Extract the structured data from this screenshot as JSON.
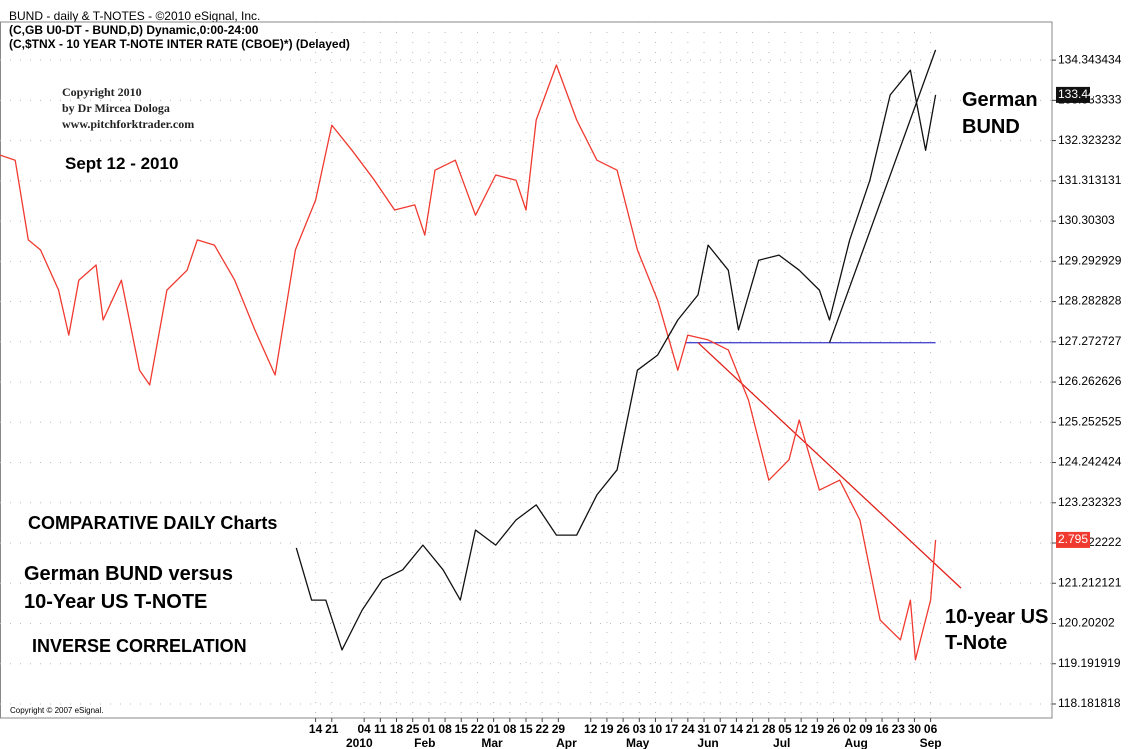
{
  "chart_data": {
    "type": "line",
    "title": "BUND - daily & T-NOTES - ©2010 eSignal, Inc.",
    "subtitle_lines": [
      "(C,GB U0-DT - BUND,D) Dynamic,0:00-24:00",
      "(C,$TNX - 10 YEAR T-NOTE INTER RATE (CBOE)*)  (Delayed)"
    ],
    "footer": "Copyright © 2007 eSignal.",
    "annotations": [
      {
        "text": "Copyright 2010",
        "color": "#222222"
      },
      {
        "text": "by Dr Mircea Dologa",
        "color": "#222222"
      },
      {
        "text": "www.pitchforktrader.com",
        "color": "#222222"
      },
      {
        "text": "Sept 12 - 2010",
        "color": "#2e8b2e"
      },
      {
        "text": "COMPARATIVE DAILY Charts",
        "color": "#8b1a9b"
      },
      {
        "text": "German BUND versus",
        "color": "#8b1a1a"
      },
      {
        "text": "10-Year US T-NOTE",
        "color": "#8b1a1a"
      },
      {
        "text": "INVERSE CORRELATION",
        "color": "#111111"
      },
      {
        "text": "German",
        "color": "#111111"
      },
      {
        "text": "BUND",
        "color": "#111111"
      },
      {
        "text": "10-year US",
        "color": "#e0201a"
      },
      {
        "text": "T-Note",
        "color": "#e0201a"
      }
    ],
    "grid": true,
    "xlim": [
      -19.5,
      45.5
    ],
    "ylim": [
      117.83,
      135.3
    ],
    "yticks": [
      134.343434,
      133.333333,
      132.323232,
      131.313131,
      130.30303,
      129.292929,
      128.282828,
      127.272727,
      126.262626,
      125.252525,
      124.242424,
      123.232323,
      122.222222,
      121.212121,
      120.20202,
      119.191919,
      118.181818
    ],
    "xticks": [
      {
        "value": 0,
        "label": "14"
      },
      {
        "value": 1,
        "label": "21"
      },
      {
        "value": 3,
        "label": "04"
      },
      {
        "value": 4,
        "label": "11"
      },
      {
        "value": 5,
        "label": "18"
      },
      {
        "value": 6,
        "label": "25"
      },
      {
        "value": 7,
        "label": "01"
      },
      {
        "value": 8,
        "label": "08"
      },
      {
        "value": 9,
        "label": "15"
      },
      {
        "value": 10,
        "label": "22"
      },
      {
        "value": 11,
        "label": "01"
      },
      {
        "value": 12,
        "label": "08"
      },
      {
        "value": 13,
        "label": "15"
      },
      {
        "value": 14,
        "label": "22"
      },
      {
        "value": 15,
        "label": "29"
      },
      {
        "value": 17,
        "label": "12"
      },
      {
        "value": 18,
        "label": "19"
      },
      {
        "value": 19,
        "label": "26"
      },
      {
        "value": 20,
        "label": "03"
      },
      {
        "value": 21,
        "label": "10"
      },
      {
        "value": 22,
        "label": "17"
      },
      {
        "value": 23,
        "label": "24"
      },
      {
        "value": 24,
        "label": "31"
      },
      {
        "value": 25,
        "label": "07"
      },
      {
        "value": 26,
        "label": "14"
      },
      {
        "value": 27,
        "label": "21"
      },
      {
        "value": 28,
        "label": "28"
      },
      {
        "value": 29,
        "label": "05"
      },
      {
        "value": 30,
        "label": "12"
      },
      {
        "value": 31,
        "label": "19"
      },
      {
        "value": 32,
        "label": "26"
      },
      {
        "value": 33,
        "label": "02"
      },
      {
        "value": 34,
        "label": "09"
      },
      {
        "value": 35,
        "label": "16"
      },
      {
        "value": 36,
        "label": "23"
      },
      {
        "value": 37,
        "label": "30"
      },
      {
        "value": 38,
        "label": "06"
      }
    ],
    "month_labels": [
      {
        "value": 2.7,
        "label": "2010"
      },
      {
        "value": 6.75,
        "label": "Feb"
      },
      {
        "value": 10.9,
        "label": "Mar"
      },
      {
        "value": 15.5,
        "label": "Apr"
      },
      {
        "value": 19.9,
        "label": "May"
      },
      {
        "value": 24.25,
        "label": "Jun"
      },
      {
        "value": 28.8,
        "label": "Jul"
      },
      {
        "value": 33.4,
        "label": "Aug"
      },
      {
        "value": 38,
        "label": "Sep"
      }
    ],
    "series": [
      {
        "name": "10-YEAR T-NOTE",
        "color": "#f03a30",
        "price_tag": "2.795",
        "x": [
          -19.5,
          -18.56,
          -17.75,
          -17.0,
          -15.88,
          -15.25,
          -14.63,
          -13.56,
          -13.13,
          -12.0,
          -10.88,
          -10.25,
          -9.19,
          -7.94,
          -7.31,
          -6.25,
          -5.0,
          -3.75,
          -2.5,
          -1.25,
          0,
          1.0,
          2.25,
          3.63,
          4.88,
          6.13,
          6.75,
          7.38,
          8.63,
          9.88,
          11.13,
          12.38,
          13.0,
          13.63,
          14.88,
          16.13,
          17.38,
          18.63,
          19.88,
          21.13,
          22.38,
          23.0,
          24.25,
          25.5,
          26.75,
          28.0,
          29.25,
          29.88,
          31.13,
          32.38,
          33.63,
          34.88,
          36.13,
          36.75,
          37.06,
          38.0,
          38.31
        ],
        "values": [
          131.96,
          131.83,
          129.83,
          129.58,
          128.57,
          127.44,
          128.82,
          129.2,
          127.82,
          128.82,
          126.56,
          126.19,
          128.57,
          129.07,
          129.83,
          129.7,
          128.82,
          127.57,
          126.44,
          129.58,
          130.83,
          132.71,
          132.08,
          131.33,
          130.58,
          130.71,
          129.95,
          131.58,
          131.83,
          130.45,
          131.46,
          131.33,
          130.58,
          132.84,
          134.22,
          132.84,
          131.83,
          131.58,
          129.58,
          128.32,
          126.56,
          127.44,
          127.32,
          127.07,
          125.81,
          123.8,
          124.31,
          125.31,
          123.55,
          123.8,
          122.8,
          120.29,
          119.79,
          120.79,
          119.29,
          120.79,
          122.3
        ]
      },
      {
        "name": "BUND",
        "color": "#111111",
        "price_tag": "133.44",
        "x": [
          -1.19,
          -0.25,
          0.63,
          1.63,
          2.88,
          4.13,
          5.38,
          6.63,
          7.88,
          8.94,
          9.88,
          11.13,
          12.38,
          13.63,
          14.88,
          16.13,
          17.38,
          18.63,
          19.88,
          21.13,
          22.38,
          23.63,
          24.25,
          25.5,
          26.13,
          27.38,
          28.63,
          29.88,
          31.13,
          31.75,
          33.0,
          34.25,
          35.5,
          36.75,
          37.69,
          38.31
        ],
        "values": [
          122.1,
          120.79,
          120.79,
          119.54,
          120.54,
          121.3,
          121.55,
          122.17,
          121.55,
          120.79,
          122.55,
          122.17,
          122.8,
          123.18,
          122.42,
          122.42,
          123.43,
          124.06,
          126.56,
          126.94,
          127.82,
          128.45,
          129.7,
          129.07,
          127.57,
          129.32,
          129.45,
          129.07,
          128.57,
          127.82,
          129.83,
          131.33,
          133.47,
          134.09,
          132.08,
          133.47
        ]
      }
    ],
    "trend_lines": [
      {
        "color": "#4a4ad0",
        "x": [
          22.88,
          38.31
        ],
        "values": [
          127.25,
          127.25
        ]
      },
      {
        "color": "#111111",
        "x": [
          31.75,
          38.31
        ],
        "values": [
          127.25,
          134.6
        ]
      },
      {
        "color": "#e0201a",
        "x": [
          23.63,
          39.88
        ],
        "values": [
          127.25,
          121.09
        ]
      }
    ]
  }
}
